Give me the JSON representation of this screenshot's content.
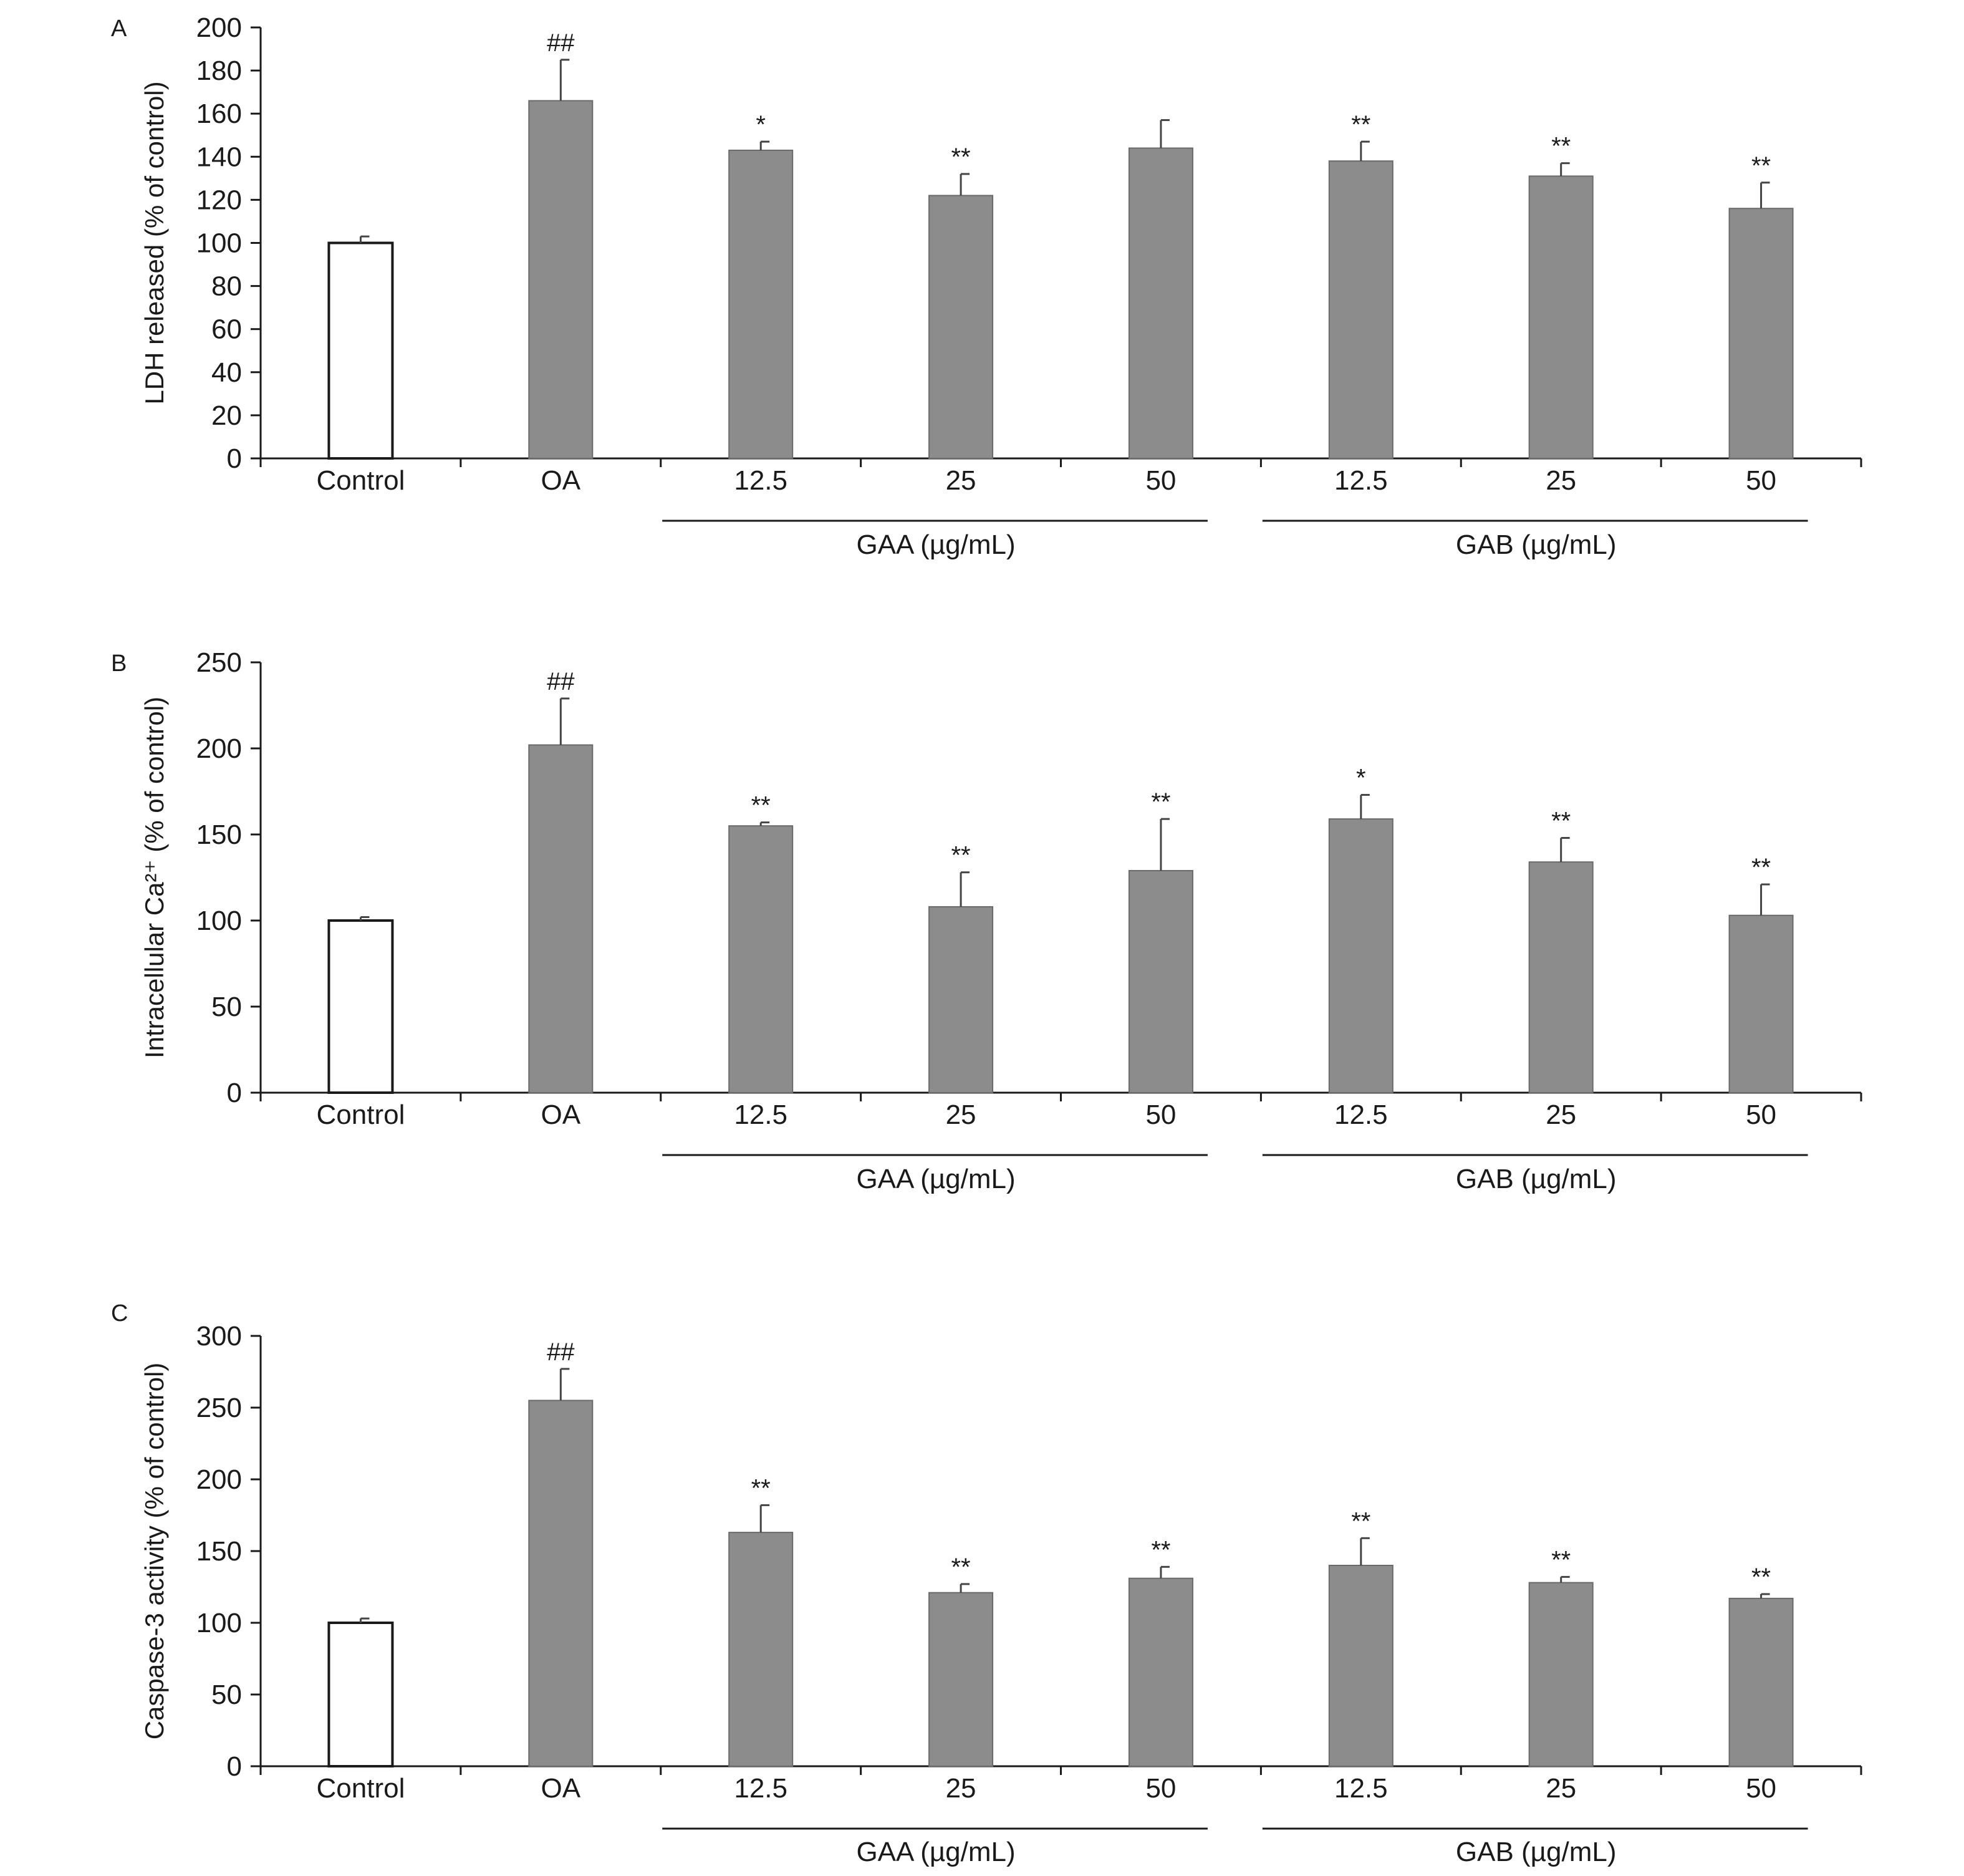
{
  "colors": {
    "control_fill": "#ffffff",
    "treated_fill": "#8c8c8c",
    "bar_stroke": "#1a1a1a",
    "treated_stroke": "#6a6a6a",
    "axis": "#1a1a1a",
    "text": "#1a1a1a"
  },
  "chart_data": [
    {
      "type": "bar",
      "panel": "A",
      "ylabel": "LDH released (% of control)",
      "ylim": [
        0,
        200
      ],
      "yticks": [
        0,
        20,
        40,
        60,
        80,
        100,
        120,
        140,
        160,
        180,
        200
      ],
      "categories": [
        "Control",
        "OA",
        "12.5",
        "25",
        "50",
        "12.5",
        "25",
        "50"
      ],
      "groups": [
        {
          "label": "GAA (µg/mL)",
          "start": 2,
          "end": 4
        },
        {
          "label": "GAB (µg/mL)",
          "start": 5,
          "end": 7
        }
      ],
      "values": [
        100,
        166,
        143,
        122,
        144,
        138,
        131,
        116
      ],
      "errors": [
        3,
        19,
        4,
        10,
        13,
        9,
        6,
        12
      ],
      "significance": [
        "",
        "##",
        "*",
        "**",
        "",
        "**",
        "**",
        "**"
      ],
      "grid": false
    },
    {
      "type": "bar",
      "panel": "B",
      "ylabel": "Intracellular Ca²⁺ (% of control)",
      "ylim": [
        0,
        250
      ],
      "yticks": [
        0,
        50,
        100,
        150,
        200,
        250
      ],
      "categories": [
        "Control",
        "OA",
        "12.5",
        "25",
        "50",
        "12.5",
        "25",
        "50"
      ],
      "groups": [
        {
          "label": "GAA (µg/mL)",
          "start": 2,
          "end": 4
        },
        {
          "label": "GAB (µg/mL)",
          "start": 5,
          "end": 7
        }
      ],
      "values": [
        100,
        202,
        155,
        108,
        129,
        159,
        134,
        103
      ],
      "errors": [
        2,
        27,
        2,
        20,
        30,
        14,
        14,
        18
      ],
      "significance": [
        "",
        "##",
        "**",
        "**",
        "**",
        "*",
        "**",
        "**"
      ],
      "grid": false
    },
    {
      "type": "bar",
      "panel": "C",
      "ylabel": "Caspase-3 activity (% of control)",
      "ylim": [
        0,
        300
      ],
      "yticks": [
        0,
        50,
        100,
        150,
        200,
        250,
        300
      ],
      "categories": [
        "Control",
        "OA",
        "12.5",
        "25",
        "50",
        "12.5",
        "25",
        "50"
      ],
      "groups": [
        {
          "label": "GAA (µg/mL)",
          "start": 2,
          "end": 4
        },
        {
          "label": "GAB (µg/mL)",
          "start": 5,
          "end": 7
        }
      ],
      "values": [
        100,
        255,
        163,
        121,
        131,
        140,
        128,
        117
      ],
      "errors": [
        3,
        22,
        19,
        6,
        8,
        19,
        4,
        3
      ],
      "significance": [
        "",
        "##",
        "**",
        "**",
        "**",
        "**",
        "**",
        "**"
      ],
      "grid": false
    }
  ]
}
